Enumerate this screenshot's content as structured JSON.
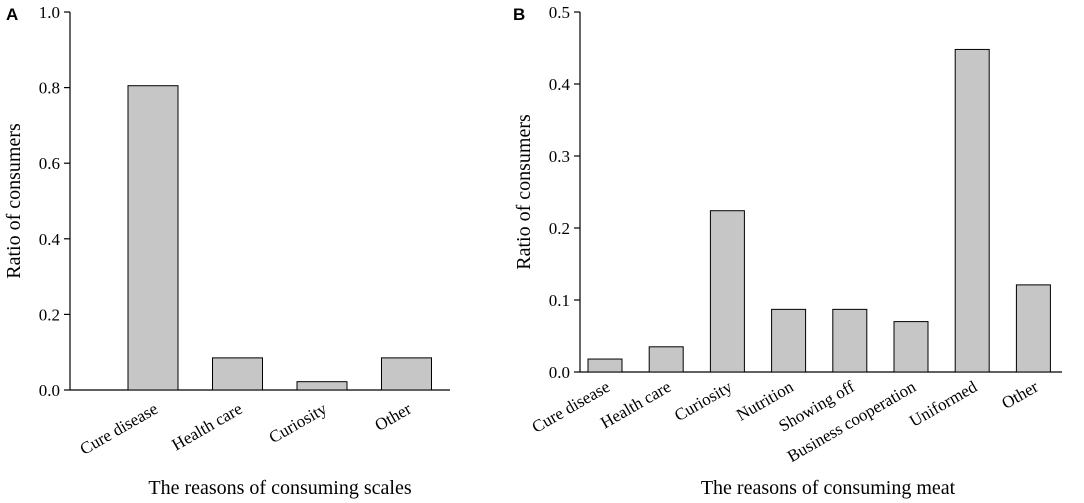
{
  "chart_data": [
    {
      "type": "bar",
      "panel": "A",
      "categories": [
        "Cure disease",
        "Health care",
        "Curiosity",
        "Other"
      ],
      "values": [
        0.805,
        0.085,
        0.022,
        0.085
      ],
      "yticks": [
        "0.0",
        "0.2",
        "0.4",
        "0.6",
        "0.8",
        "1.0"
      ],
      "ylim": [
        0,
        1.0
      ],
      "xlabel": "The reasons of consuming scales",
      "ylabel": "Ratio of consumers"
    },
    {
      "type": "bar",
      "panel": "B",
      "categories": [
        "Cure disease",
        "Health care",
        "Curiosity",
        "Nutrition",
        "Showing off",
        "Business cooperation",
        "Uniformed",
        "Other"
      ],
      "values": [
        0.018,
        0.035,
        0.224,
        0.087,
        0.087,
        0.07,
        0.448,
        0.121
      ],
      "yticks": [
        "0.0",
        "0.1",
        "0.2",
        "0.3",
        "0.4",
        "0.5"
      ],
      "ylim": [
        0,
        0.5
      ],
      "xlabel": "The reasons of consuming meat",
      "ylabel": "Ratio of consumers"
    }
  ]
}
